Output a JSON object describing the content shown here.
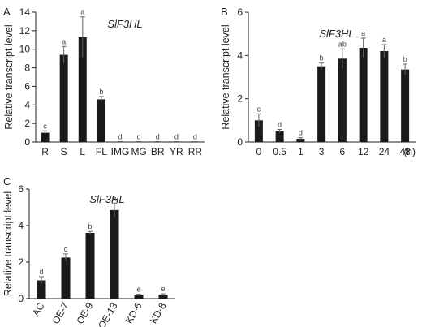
{
  "chart_data": [
    {
      "panel": "A",
      "type": "bar",
      "title": "SlF3HL",
      "ylabel": "Relative transcript level",
      "xlabel": "",
      "ylim": [
        0,
        14
      ],
      "yticks": [
        0,
        2,
        4,
        6,
        8,
        10,
        12,
        14
      ],
      "categories": [
        "R",
        "S",
        "L",
        "FL",
        "IMG",
        "MG",
        "BR",
        "YR",
        "RR"
      ],
      "values": [
        1.0,
        9.4,
        11.3,
        4.6,
        0.03,
        0.03,
        0.03,
        0.03,
        0.02
      ],
      "errors": [
        0.2,
        0.9,
        2.2,
        0.3,
        0.02,
        0.02,
        0.02,
        0.02,
        0.02
      ],
      "significance": [
        "c",
        "a",
        "a",
        "b",
        "d",
        "d",
        "d",
        "d",
        "d"
      ],
      "bar_color": "#1a1a1a"
    },
    {
      "panel": "B",
      "type": "bar",
      "title": "SlF3HL",
      "ylabel": "Relative transcript level",
      "xlabel": "",
      "x_unit": "(h)",
      "ylim": [
        0,
        6
      ],
      "yticks": [
        0,
        2,
        4,
        6
      ],
      "categories": [
        "0",
        "0.5",
        "1",
        "3",
        "6",
        "12",
        "24",
        "48"
      ],
      "values": [
        1.0,
        0.5,
        0.15,
        3.5,
        3.85,
        4.35,
        4.2,
        3.35
      ],
      "errors": [
        0.3,
        0.08,
        0.05,
        0.15,
        0.45,
        0.45,
        0.3,
        0.25
      ],
      "significance": [
        "c",
        "d",
        "d",
        "b",
        "ab",
        "a",
        "a",
        "b"
      ],
      "bar_color": "#1a1a1a"
    },
    {
      "panel": "C",
      "type": "bar",
      "title": "SlF3HL",
      "ylabel": "Relative transcript level",
      "xlabel": "",
      "ylim": [
        0,
        6
      ],
      "yticks": [
        0,
        2,
        4,
        6
      ],
      "categories": [
        "AC",
        "OE-7",
        "OE-9",
        "OE-13",
        "KD-6",
        "KD-8"
      ],
      "values": [
        1.0,
        2.25,
        3.6,
        4.85,
        0.2,
        0.22
      ],
      "errors": [
        0.2,
        0.2,
        0.08,
        0.38,
        0.04,
        0.04
      ],
      "significance": [
        "d",
        "c",
        "b",
        "a",
        "e",
        "e"
      ],
      "bar_color": "#1a1a1a"
    }
  ]
}
